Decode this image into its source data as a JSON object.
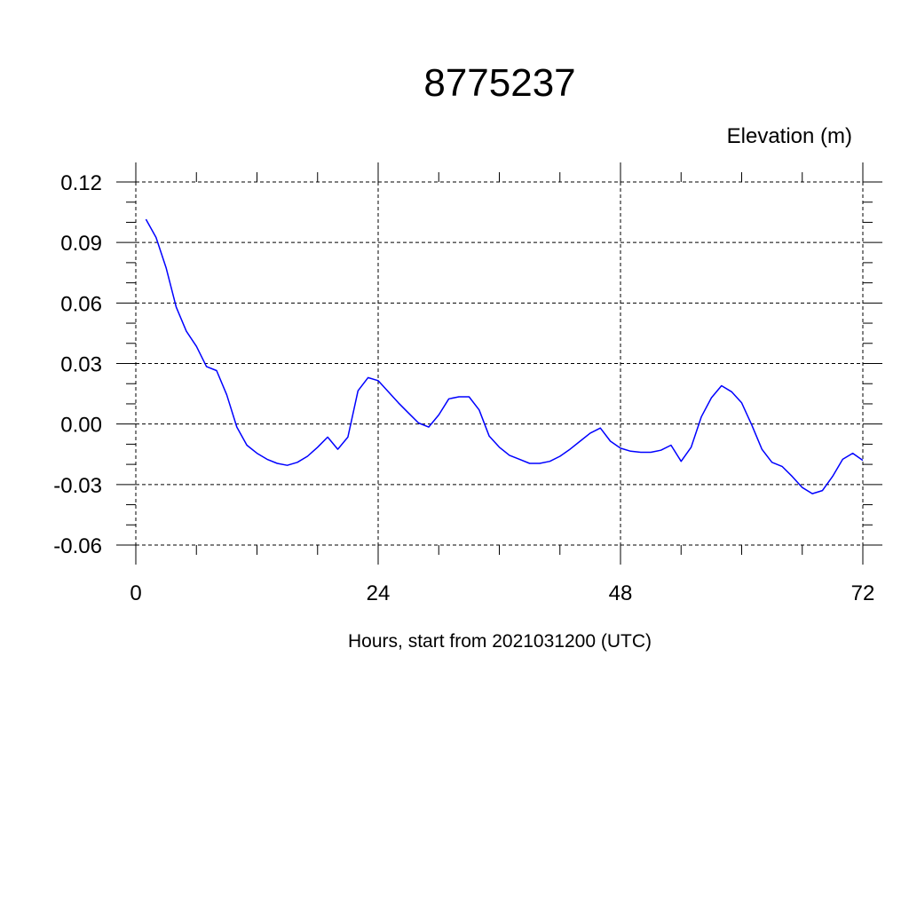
{
  "chart_data": {
    "type": "line",
    "title": "8775237",
    "ylabel": "Elevation (m)",
    "xlabel": "Hours, start from 2021031200 (UTC)",
    "xlim": [
      0,
      72
    ],
    "ylim": [
      -0.06,
      0.12
    ],
    "xticks": [
      0,
      24,
      48,
      72
    ],
    "yticks": [
      0.12,
      0.09,
      0.06,
      0.03,
      0.0,
      -0.03,
      -0.06
    ],
    "ytick_labels": [
      "0.12",
      "0.09",
      "0.06",
      "0.03",
      "0.00",
      "-0.03",
      "-0.06"
    ],
    "xtick_labels": [
      "0",
      "24",
      "48",
      "72"
    ],
    "grid": true,
    "series_color": "#0000ff",
    "series": [
      {
        "x": [
          1,
          2,
          3,
          4,
          5,
          6,
          7,
          8,
          9,
          10,
          11,
          12,
          13,
          14,
          15,
          16,
          17,
          18,
          19,
          20,
          21,
          22,
          23,
          24,
          25,
          26,
          27,
          28,
          29,
          30,
          31,
          32,
          33,
          34,
          35,
          36,
          37,
          38,
          39,
          40,
          41,
          42,
          43,
          44,
          45,
          46,
          47,
          48,
          49,
          50,
          51,
          52,
          53,
          54,
          55,
          56,
          57,
          58,
          59,
          60,
          61,
          62,
          63,
          64,
          65,
          66,
          67,
          68,
          69,
          70,
          71,
          72
        ],
        "values": [
          0.1015,
          0.0925,
          0.0775,
          0.058,
          0.046,
          0.0385,
          0.0285,
          0.0265,
          0.0145,
          -0.0015,
          -0.0105,
          -0.0145,
          -0.0175,
          -0.0195,
          -0.0205,
          -0.019,
          -0.016,
          -0.0115,
          -0.0065,
          -0.0125,
          -0.0065,
          0.0165,
          0.023,
          0.0215,
          0.016,
          0.0105,
          0.0055,
          0.0005,
          -0.0015,
          0.0045,
          0.0125,
          0.0135,
          0.0135,
          0.007,
          -0.006,
          -0.0115,
          -0.0155,
          -0.0175,
          -0.0195,
          -0.0195,
          -0.0185,
          -0.016,
          -0.0125,
          -0.0085,
          -0.0045,
          -0.002,
          -0.0085,
          -0.012,
          -0.0135,
          -0.014,
          -0.014,
          -0.013,
          -0.0105,
          -0.0185,
          -0.0115,
          0.0035,
          0.013,
          0.019,
          0.016,
          0.0105,
          -0.0005,
          -0.0125,
          -0.019,
          -0.021,
          -0.026,
          -0.0315,
          -0.0345,
          -0.033,
          -0.026,
          -0.0175,
          -0.0145,
          -0.018
        ]
      }
    ]
  }
}
